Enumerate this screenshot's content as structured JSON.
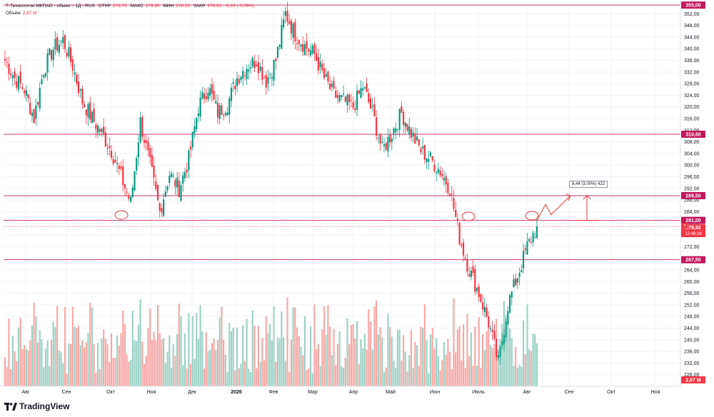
{
  "header": {
    "symbol": "Т-Технологии МКПАО - обыкн. - 1Д - RUS",
    "open_label": "ОТКР",
    "open": "279,72",
    "high_label": "МАКС",
    "high": "279,90",
    "low_label": "МИН",
    "low": "278,50",
    "close_label": "ЗАКР",
    "close": "278,92",
    "change": "-0,26 (-0,09%)"
  },
  "volume_title": {
    "label": "Объём",
    "value": "2,87 M"
  },
  "brand": "TradingView",
  "measure_label": "8,44 (3,00%) 422",
  "colors": {
    "up": "#089981",
    "down": "#f23645",
    "line": "#c2185b",
    "grid": "#f0f3fa",
    "up_vol": "#9ed2c6",
    "down_vol": "#f7a9a7"
  },
  "chart_data": {
    "type": "candlestick",
    "y_ticks": [
      "228,00",
      "232,00",
      "236,00",
      "240,00",
      "244,00",
      "248,00",
      "252,00",
      "256,00",
      "260,00",
      "264,00",
      "268,00",
      "272,00",
      "276,00",
      "280,00",
      "284,00",
      "288,00",
      "292,00",
      "296,00",
      "300,00",
      "304,00",
      "308,00",
      "312,00",
      "316,00",
      "320,00",
      "324,00",
      "328,00",
      "332,00",
      "336,00",
      "340,00",
      "344,00",
      "348,00",
      "352,00"
    ],
    "ylim": [
      224,
      356
    ],
    "x_labels": [
      "Авг",
      "Сен",
      "Окт",
      "Ноя",
      "Дек",
      "2026",
      "Фев",
      "Мар",
      "Апр",
      "Май",
      "Июн",
      "Июль",
      "Авг",
      "Сен",
      "Окт",
      "Ноя"
    ],
    "levels": [
      {
        "label": "355,00",
        "value": 355.0
      },
      {
        "label": "310,60",
        "value": 310.6
      },
      {
        "label": "289,50",
        "value": 289.5
      },
      {
        "label": "281,00",
        "value": 281.0
      },
      {
        "label": "267,50",
        "value": 267.5
      }
    ],
    "current_price": {
      "label": "278,92",
      "value": 278.92,
      "timer": "12:48:28",
      "marker": "T"
    },
    "volume_badge": "2,87 M",
    "closes": [
      {
        "d": "Авг",
        "c": 336
      },
      {
        "d": "Авг",
        "c": 330
      },
      {
        "d": "Авг",
        "c": 326
      },
      {
        "d": "Авг",
        "c": 316
      },
      {
        "d": "Авг",
        "c": 333
      },
      {
        "d": "Авг",
        "c": 340
      },
      {
        "d": "Авг",
        "c": 343
      },
      {
        "d": "Сен",
        "c": 334
      },
      {
        "d": "Сен",
        "c": 322
      },
      {
        "d": "Сен",
        "c": 316
      },
      {
        "d": "Сен",
        "c": 311
      },
      {
        "d": "Окт",
        "c": 305
      },
      {
        "d": "Окт",
        "c": 296
      },
      {
        "d": "Окт",
        "c": 287
      },
      {
        "d": "Окт",
        "c": 315
      },
      {
        "d": "Ноя",
        "c": 300
      },
      {
        "d": "Ноя",
        "c": 284
      },
      {
        "d": "Ноя",
        "c": 297
      },
      {
        "d": "Ноя",
        "c": 292
      },
      {
        "d": "Дек",
        "c": 302
      },
      {
        "d": "Дек",
        "c": 320
      },
      {
        "d": "Дек",
        "c": 327
      },
      {
        "d": "Дек",
        "c": 318
      },
      {
        "d": "2026",
        "c": 321
      },
      {
        "d": "2026",
        "c": 330
      },
      {
        "d": "2026",
        "c": 334
      },
      {
        "d": "Фев",
        "c": 336
      },
      {
        "d": "Фев",
        "c": 329
      },
      {
        "d": "Фев",
        "c": 336
      },
      {
        "d": "Фев",
        "c": 352
      },
      {
        "d": "Мар",
        "c": 345
      },
      {
        "d": "Мар",
        "c": 341
      },
      {
        "d": "Мар",
        "c": 338
      },
      {
        "d": "Мар",
        "c": 330
      },
      {
        "d": "Апр",
        "c": 324
      },
      {
        "d": "Апр",
        "c": 322
      },
      {
        "d": "Апр",
        "c": 320
      },
      {
        "d": "Апр",
        "c": 327
      },
      {
        "d": "Май",
        "c": 318
      },
      {
        "d": "Май",
        "c": 305
      },
      {
        "d": "Май",
        "c": 311
      },
      {
        "d": "Май",
        "c": 318
      },
      {
        "d": "Май",
        "c": 311
      },
      {
        "d": "Июн",
        "c": 305
      },
      {
        "d": "Июн",
        "c": 302
      },
      {
        "d": "Июн",
        "c": 298
      },
      {
        "d": "Июн",
        "c": 292
      },
      {
        "d": "Июн",
        "c": 275
      },
      {
        "d": "Июль",
        "c": 264
      },
      {
        "d": "Июль",
        "c": 256
      },
      {
        "d": "Июль",
        "c": 246
      },
      {
        "d": "Июль",
        "c": 232
      },
      {
        "d": "Июль",
        "c": 252
      },
      {
        "d": "Авг",
        "c": 262
      },
      {
        "d": "Авг",
        "c": 272
      },
      {
        "d": "Авг",
        "c": 279
      }
    ]
  }
}
